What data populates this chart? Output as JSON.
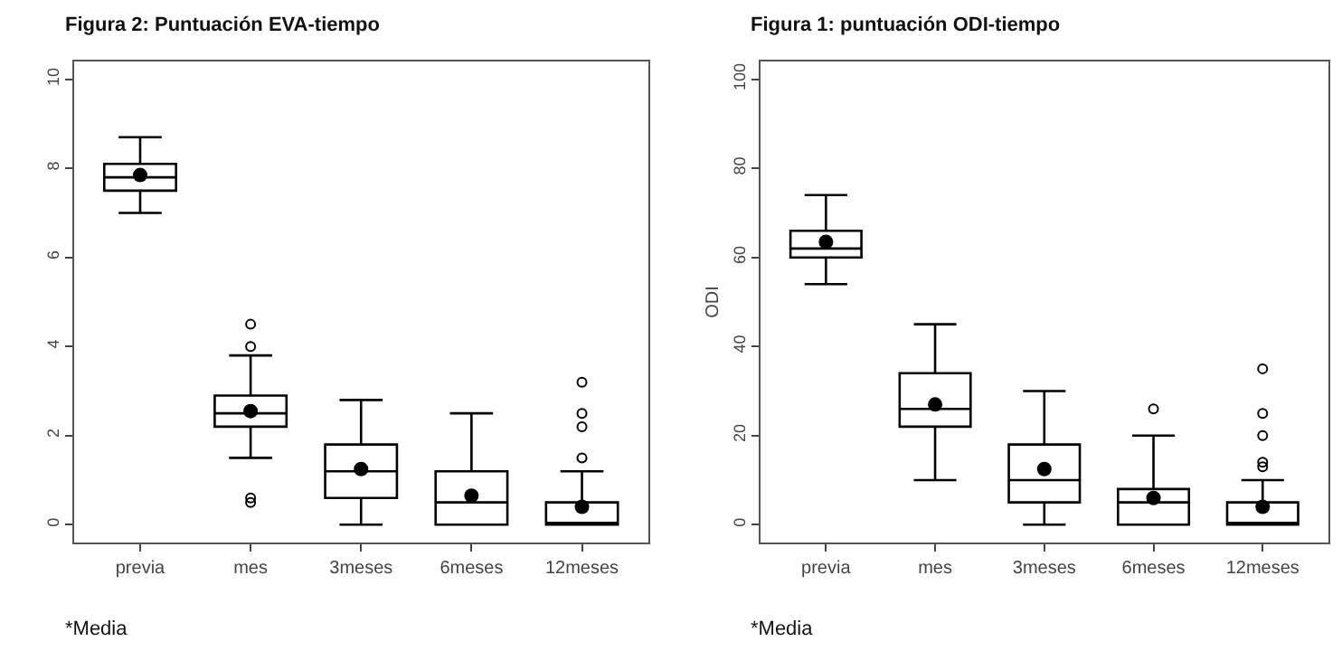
{
  "chart_data": [
    {
      "type": "box",
      "title": "Figura 2: Puntuación EVA-tiempo",
      "categories": [
        "previa",
        "mes",
        "3meses",
        "6meses",
        "12meses"
      ],
      "boxes": [
        {
          "low": 7.0,
          "q1": 7.5,
          "median": 7.8,
          "q3": 8.1,
          "high": 8.7,
          "mean": 7.85
        },
        {
          "low": 1.5,
          "q1": 2.2,
          "median": 2.5,
          "q3": 2.9,
          "high": 3.8,
          "mean": 2.55,
          "outliers": [
            4.5,
            4.0,
            0.6,
            0.5
          ]
        },
        {
          "low": 0,
          "q1": 0.6,
          "median": 1.2,
          "q3": 1.8,
          "high": 2.8,
          "mean": 1.25
        },
        {
          "low": 0,
          "q1": 0,
          "median": 0.5,
          "q3": 1.2,
          "high": 2.5,
          "mean": 0.65
        },
        {
          "low": 0,
          "q1": 0,
          "median": 0,
          "q3": 0.5,
          "high": 1.2,
          "mean": 0.4,
          "outliers": [
            1.5,
            2.2,
            2.5,
            3.2
          ]
        }
      ],
      "color": "#000000",
      "ylim": [
        -0.4,
        10.4
      ],
      "yticks": [
        0,
        2,
        4,
        6,
        8,
        10
      ],
      "annotations": [
        "*Media"
      ]
    },
    {
      "type": "box",
      "title": "Figura 1: puntuación ODI-tiempo",
      "ylabel": "ODI",
      "categories": [
        "previa",
        "mes",
        "3meses",
        "6meses",
        "12meses"
      ],
      "boxes": [
        {
          "low": 54,
          "q1": 60,
          "median": 62,
          "q3": 66,
          "high": 74,
          "mean": 63.5
        },
        {
          "low": 10,
          "q1": 22,
          "median": 26,
          "q3": 34,
          "high": 45,
          "mean": 27
        },
        {
          "low": 0,
          "q1": 5,
          "median": 10,
          "q3": 18,
          "high": 30,
          "mean": 12.5
        },
        {
          "low": 0,
          "q1": 0,
          "median": 5,
          "q3": 8,
          "high": 20,
          "mean": 6,
          "outliers": [
            26
          ]
        },
        {
          "low": 0,
          "q1": 0,
          "median": 0,
          "q3": 5,
          "high": 10,
          "mean": 4,
          "outliers": [
            13,
            14,
            20,
            25,
            35
          ]
        }
      ],
      "color": "#000000",
      "ylim": [
        -4,
        104
      ],
      "yticks": [
        0,
        20,
        40,
        60,
        80,
        100
      ],
      "annotations": [
        "*Media"
      ]
    }
  ]
}
